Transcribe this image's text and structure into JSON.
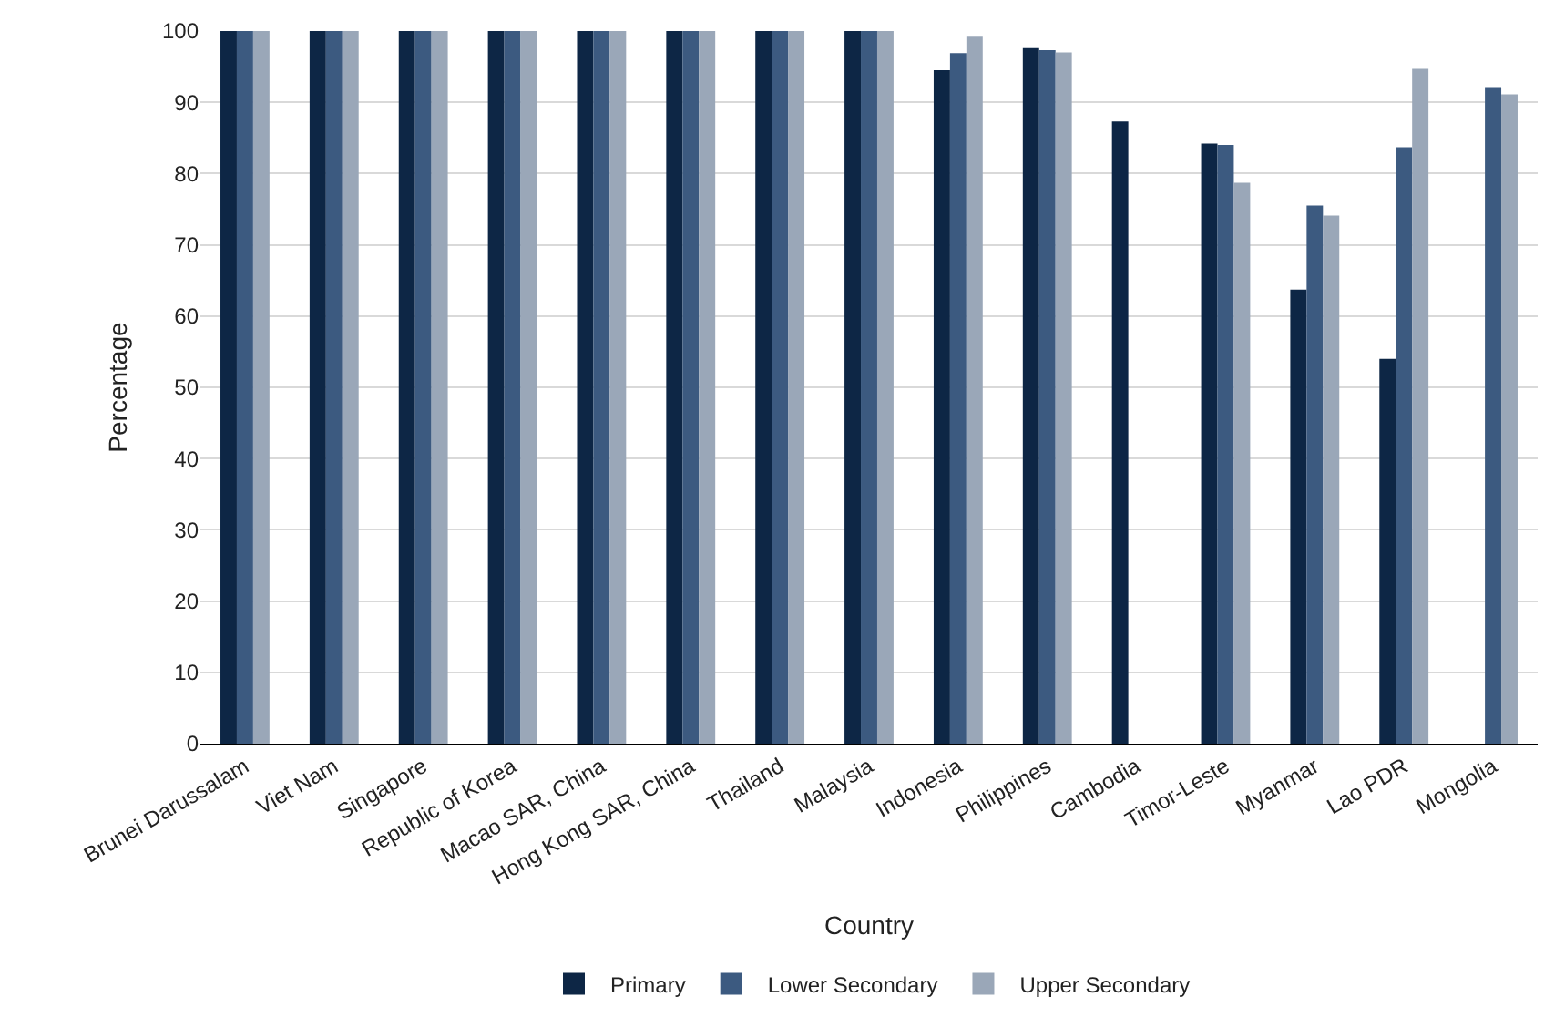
{
  "chart_data": {
    "type": "bar",
    "xlabel": "Country",
    "ylabel": "Percentage",
    "categories": [
      "Brunei Darussalam",
      "Viet Nam",
      "Singapore",
      "Republic of Korea",
      "Macao SAR, China",
      "Hong Kong SAR, China",
      "Thailand",
      "Malaysia",
      "Indonesia",
      "Philippines",
      "Cambodia",
      "Timor-Leste",
      "Myanmar",
      "Lao PDR",
      "Mongolia"
    ],
    "series": [
      {
        "name": "Primary",
        "color": "#0d2645",
        "values": [
          100,
          100,
          100,
          100,
          100,
          100,
          100,
          100,
          94.5,
          97.6,
          87.3,
          84.2,
          63.7,
          54.0,
          null
        ]
      },
      {
        "name": "Lower Secondary",
        "color": "#3c5a80",
        "values": [
          100,
          100,
          100,
          100,
          100,
          100,
          100,
          100,
          96.9,
          97.3,
          null,
          84.0,
          75.5,
          83.7,
          92.0
        ]
      },
      {
        "name": "Upper Secondary",
        "color": "#9aa7b8",
        "values": [
          100,
          100,
          100,
          100,
          100,
          100,
          100,
          100,
          99.2,
          97.0,
          null,
          78.7,
          74.1,
          94.7,
          91.1
        ]
      }
    ],
    "ylim": [
      0,
      100
    ],
    "yticks": [
      0,
      10,
      20,
      30,
      40,
      50,
      60,
      70,
      80,
      90,
      100
    ],
    "grid": "y",
    "legend": "bottom"
  }
}
